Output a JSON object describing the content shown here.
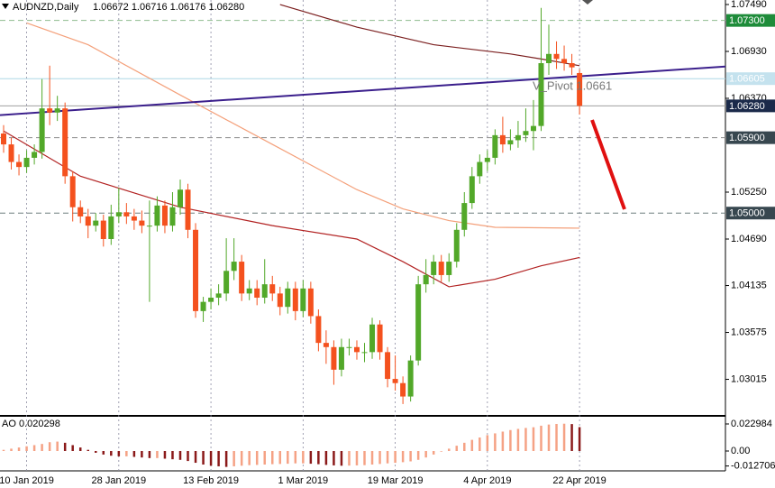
{
  "chart_data": {
    "type": "candlestick",
    "title": "AUDNZD,Daily",
    "subtitle": "1.06672 1.06716 1.06176 1.06280",
    "annotation": "V_Pivot 1.0661",
    "xlim": [
      -0.47,
      94.0
    ],
    "xticks": [
      {
        "value": 3,
        "label": "10 Jan 2019"
      },
      {
        "value": 15,
        "label": "28 Jan 2019"
      },
      {
        "value": 27,
        "label": "13 Feb 2019"
      },
      {
        "value": 39,
        "label": "1 Mar 2019"
      },
      {
        "value": 51,
        "label": "19 Mar 2019"
      },
      {
        "value": 63,
        "label": "4 Apr 2019"
      },
      {
        "value": 75,
        "label": "22 Apr 2019"
      }
    ],
    "ylim": [
      1.0259,
      1.07544
    ],
    "yticks": [
      {
        "value": 1.0749,
        "label": "1.07490"
      },
      {
        "value": 1.0693,
        "label": "1.06930"
      },
      {
        "value": 1.0637,
        "label": "1.06370"
      },
      {
        "value": 1.0525,
        "label": "1.05250"
      },
      {
        "value": 1.0469,
        "label": "1.04690"
      },
      {
        "value": 1.04135,
        "label": "1.04135"
      },
      {
        "value": 1.03575,
        "label": "1.03575"
      },
      {
        "value": 1.03015,
        "label": "1.03015"
      }
    ],
    "grid": true,
    "up_color": "#52a829",
    "down_color": "#f4511e",
    "open": [
      1.0595,
      1.0582,
      1.0561,
      1.0555,
      1.0566,
      1.0573,
      1.0625,
      1.062,
      1.0625,
      1.0544,
      1.0507,
      1.0496,
      1.0485,
      1.0491,
      1.0469,
      1.0496,
      1.0501,
      1.0496,
      1.0491,
      1.0485,
      1.0485,
      1.0509,
      1.0485,
      1.0507,
      1.0528,
      1.048,
      1.0383,
      1.0394,
      1.0399,
      1.0404,
      1.0431,
      1.0442,
      1.0404,
      1.041,
      1.0399,
      1.0415,
      1.0404,
      1.0388,
      1.041,
      1.0383,
      1.041,
      1.0377,
      1.0345,
      1.034,
      1.0313,
      1.034,
      1.034,
      1.0334,
      1.0334,
      1.0367,
      1.0334,
      1.0302,
      1.0297,
      1.0281,
      1.0324,
      1.0415,
      1.0426,
      1.0442,
      1.0426,
      1.0442,
      1.048,
      1.0512,
      1.0544,
      1.0561,
      1.0566,
      1.0593,
      1.0582,
      1.0587,
      1.0593,
      1.0598,
      1.0604,
      1.0679,
      1.069,
      1.0684,
      1.0679,
      1.06672
    ],
    "high": [
      1.0605,
      1.059,
      1.057,
      1.0575,
      1.0582,
      1.066,
      1.0676,
      1.064,
      1.0632,
      1.055,
      1.0515,
      1.0505,
      1.05,
      1.0498,
      1.051,
      1.053,
      1.0512,
      1.0505,
      1.0503,
      1.0515,
      1.052,
      1.0515,
      1.0525,
      1.054,
      1.0535,
      1.0488,
      1.04,
      1.041,
      1.0415,
      1.047,
      1.047,
      1.045,
      1.042,
      1.042,
      1.0445,
      1.0425,
      1.0412,
      1.0418,
      1.0418,
      1.042,
      1.0418,
      1.0385,
      1.036,
      1.0348,
      1.035,
      1.035,
      1.0348,
      1.0345,
      1.0375,
      1.0372,
      1.034,
      1.033,
      1.0305,
      1.033,
      1.0425,
      1.0445,
      1.045,
      1.045,
      1.0452,
      1.0488,
      1.0525,
      1.0555,
      1.057,
      1.0575,
      1.06,
      1.0615,
      1.06,
      1.061,
      1.0625,
      1.0635,
      1.0745,
      1.0725,
      1.0705,
      1.07,
      1.069,
      1.06716
    ],
    "low": [
      1.0572,
      1.0552,
      1.0545,
      1.0548,
      1.0558,
      1.0565,
      1.0605,
      1.061,
      1.0535,
      1.049,
      1.0488,
      1.047,
      1.0478,
      1.046,
      1.0462,
      1.0488,
      1.0487,
      1.048,
      1.0476,
      1.0394,
      1.0478,
      1.0476,
      1.0478,
      1.0498,
      1.047,
      1.0375,
      1.037,
      1.0385,
      1.039,
      1.0395,
      1.042,
      1.0395,
      1.0396,
      1.039,
      1.0392,
      1.0395,
      1.0378,
      1.038,
      1.0372,
      1.0376,
      1.0368,
      1.0335,
      1.032,
      1.0295,
      1.0305,
      1.033,
      1.0325,
      1.0322,
      1.0326,
      1.0325,
      1.0292,
      1.0288,
      1.0272,
      1.0275,
      1.0318,
      1.0405,
      1.0415,
      1.0418,
      1.0418,
      1.0435,
      1.0472,
      1.0505,
      1.0535,
      1.055,
      1.0558,
      1.0572,
      1.0575,
      1.0578,
      1.0585,
      1.0575,
      1.0598,
      1.0665,
      1.0672,
      1.067,
      1.0665,
      1.06176
    ],
    "close": [
      1.0582,
      1.0561,
      1.0555,
      1.0566,
      1.0573,
      1.0625,
      1.062,
      1.0625,
      1.0544,
      1.0507,
      1.0496,
      1.0485,
      1.0491,
      1.0469,
      1.0496,
      1.0501,
      1.0496,
      1.0491,
      1.0485,
      1.0485,
      1.0509,
      1.0485,
      1.0507,
      1.0528,
      1.048,
      1.0383,
      1.0394,
      1.0399,
      1.0404,
      1.0431,
      1.0442,
      1.0404,
      1.041,
      1.0399,
      1.0415,
      1.0404,
      1.0388,
      1.041,
      1.0383,
      1.041,
      1.0377,
      1.0345,
      1.034,
      1.0313,
      1.034,
      1.034,
      1.0334,
      1.0334,
      1.0367,
      1.0334,
      1.0302,
      1.0297,
      1.0281,
      1.0324,
      1.0415,
      1.0426,
      1.0442,
      1.0426,
      1.0442,
      1.048,
      1.0512,
      1.0544,
      1.0561,
      1.0566,
      1.0593,
      1.0582,
      1.0587,
      1.0593,
      1.0598,
      1.0604,
      1.0679,
      1.069,
      1.0684,
      1.0679,
      1.0674,
      1.0628
    ],
    "moving_averages": [
      {
        "color": "#7b1f1f",
        "x": [
          36,
          46,
          56,
          66,
          70,
          75
        ],
        "values": [
          1.0749,
          1.0722,
          1.0701,
          1.069,
          1.0684,
          1.0676
        ]
      },
      {
        "color": "#f4a07a",
        "x": [
          3,
          11,
          23,
          35,
          46,
          52,
          58,
          64,
          75
        ],
        "values": [
          1.0727,
          1.0701,
          1.0641,
          1.0582,
          1.0528,
          1.0505,
          1.0491,
          1.0483,
          1.0482
        ]
      },
      {
        "color": "#b22222",
        "x": [
          0,
          10,
          23,
          35,
          46,
          52,
          58,
          64,
          70,
          75
        ],
        "values": [
          1.0598,
          1.0544,
          1.0507,
          1.0485,
          1.0469,
          1.0442,
          1.0412,
          1.0421,
          1.0437,
          1.0447
        ]
      }
    ],
    "trendline": {
      "color": "#3b1f8c",
      "x": [
        -0.47,
        94.0
      ],
      "values": [
        1.0617,
        1.0675
      ]
    },
    "levels": [
      {
        "value": 1.073,
        "label": "1.07300",
        "line_color": "#8fbc8f",
        "box_color": "#1e8c3a",
        "dashed": true
      },
      {
        "value": 1.06605,
        "label": "1.06605",
        "line_color": "#add8e6",
        "box_color": "#c4e2ee",
        "dashed": false
      },
      {
        "value": 1.0628,
        "label": "1.06280",
        "line_color": "#a0a0a0",
        "box_color": "#1b2a4a",
        "dashed": false
      },
      {
        "value": 1.059,
        "label": "1.05900",
        "line_color": "#8a8a8a",
        "box_color": "#37474f",
        "dashed": true
      },
      {
        "value": 1.05,
        "label": "1.05000",
        "line_color": "#6f7f7f",
        "box_color": "#37474f",
        "dashed": true
      }
    ],
    "oscillator": {
      "title": "AO 0.020298",
      "up_color": "#f5a285",
      "down_color": "#8b1a1a",
      "ylim": [
        -0.01686,
        0.02912
      ],
      "yticks": [
        0.022984,
        {
          "value": 0,
          "label": "0.00"
        },
        -0.012706
      ],
      "values": [
        0.001,
        0.002,
        0.003,
        0.004,
        0.005,
        0.006,
        0.0075,
        0.008,
        0.007,
        0.005,
        0.003,
        0.001,
        -0.0015,
        -0.003,
        -0.004,
        -0.0045,
        -0.0045,
        -0.005,
        -0.0055,
        -0.006,
        -0.006,
        -0.0065,
        -0.007,
        -0.0075,
        -0.0085,
        -0.01,
        -0.0115,
        -0.0125,
        -0.013,
        -0.0135,
        -0.013,
        -0.0125,
        -0.012,
        -0.0118,
        -0.0115,
        -0.0112,
        -0.011,
        -0.0108,
        -0.0105,
        -0.0105,
        -0.0108,
        -0.0112,
        -0.0118,
        -0.0122,
        -0.0125,
        -0.0124,
        -0.0122,
        -0.012,
        -0.0115,
        -0.011,
        -0.0105,
        -0.01,
        -0.0095,
        -0.0088,
        -0.0075,
        -0.0055,
        -0.003,
        -0.0005,
        0.002,
        0.0045,
        0.007,
        0.0095,
        0.0115,
        0.0135,
        0.015,
        0.0165,
        0.0178,
        0.0188,
        0.0196,
        0.0202,
        0.0215,
        0.0225,
        0.023,
        0.0232,
        0.0229,
        0.020298
      ]
    }
  }
}
